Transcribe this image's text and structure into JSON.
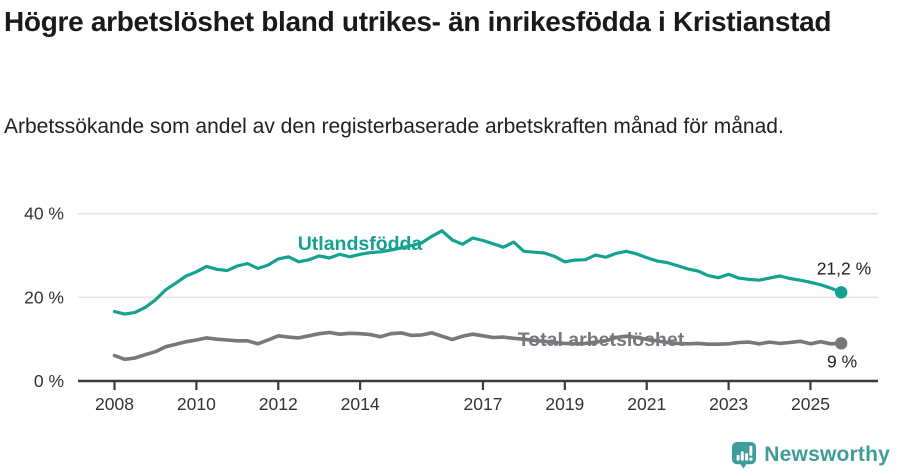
{
  "header": {
    "title": "Högre arbetslöshet bland utrikes- än inrikesfödda i Kristianstad",
    "subtitle": "Arbetssökande som andel av den registerbaserade arbetskraften månad för månad."
  },
  "footer": {
    "brand": "Newsworthy",
    "brand_icon": "bar-chart-speech-bubble-icon",
    "brand_color": "#3f9c98"
  },
  "colors": {
    "series_utlandsfodda": "#14a190",
    "series_total": "#77777c",
    "gridline": "#e3e3e3",
    "axis": "#3c3c3c",
    "tick_label": "#333333",
    "value_label": "#222222"
  },
  "chart_data": {
    "type": "line",
    "title": "Högre arbetslöshet bland utrikes- än inrikesfödda i Kristianstad",
    "subtitle": "Arbetssökande som andel av den registerbaserade arbetskraften månad för månad.",
    "x_unit": "year (monthly series, values estimated quarterly)",
    "y_unit": "percent of registered labour force",
    "ylim": [
      0,
      42
    ],
    "xlim": [
      2008,
      2025.83
    ],
    "grid": "horizontal",
    "legend_position": "inline-labels",
    "yticks": [
      {
        "value": 0,
        "label": "0 %"
      },
      {
        "value": 20,
        "label": "20 %"
      },
      {
        "value": 40,
        "label": "40 %"
      }
    ],
    "xticks": [
      {
        "value": 2008,
        "label": "2008"
      },
      {
        "value": 2010,
        "label": "2010"
      },
      {
        "value": 2012,
        "label": "2012"
      },
      {
        "value": 2014,
        "label": "2014"
      },
      {
        "value": 2017,
        "label": "2017"
      },
      {
        "value": 2019,
        "label": "2019"
      },
      {
        "value": 2021,
        "label": "2021"
      },
      {
        "value": 2023,
        "label": "2023"
      },
      {
        "value": 2025,
        "label": "2025"
      }
    ],
    "series": [
      {
        "name": "Utlandsfödda",
        "color": "#14a190",
        "end_label": "21,2 %",
        "end_value": 21.2,
        "points": [
          [
            2008.0,
            16.6
          ],
          [
            2008.25,
            16.0
          ],
          [
            2008.5,
            16.4
          ],
          [
            2008.75,
            17.6
          ],
          [
            2009.0,
            19.4
          ],
          [
            2009.25,
            21.8
          ],
          [
            2009.5,
            23.4
          ],
          [
            2009.75,
            25.1
          ],
          [
            2010.0,
            26.1
          ],
          [
            2010.25,
            27.4
          ],
          [
            2010.5,
            26.7
          ],
          [
            2010.75,
            26.4
          ],
          [
            2011.0,
            27.5
          ],
          [
            2011.25,
            28.1
          ],
          [
            2011.5,
            26.9
          ],
          [
            2011.75,
            27.7
          ],
          [
            2012.0,
            29.2
          ],
          [
            2012.25,
            29.7
          ],
          [
            2012.5,
            28.5
          ],
          [
            2012.75,
            29.0
          ],
          [
            2013.0,
            29.9
          ],
          [
            2013.25,
            29.4
          ],
          [
            2013.5,
            30.3
          ],
          [
            2013.75,
            29.7
          ],
          [
            2014.0,
            30.3
          ],
          [
            2014.25,
            30.7
          ],
          [
            2014.5,
            30.9
          ],
          [
            2014.75,
            31.3
          ],
          [
            2015.0,
            31.8
          ],
          [
            2015.25,
            32.4
          ],
          [
            2015.5,
            33.0
          ],
          [
            2015.75,
            34.6
          ],
          [
            2016.0,
            35.9
          ],
          [
            2016.25,
            33.7
          ],
          [
            2016.5,
            32.7
          ],
          [
            2016.75,
            34.2
          ],
          [
            2017.0,
            33.6
          ],
          [
            2017.25,
            32.8
          ],
          [
            2017.5,
            32.0
          ],
          [
            2017.75,
            33.2
          ],
          [
            2018.0,
            31.0
          ],
          [
            2018.25,
            30.8
          ],
          [
            2018.5,
            30.6
          ],
          [
            2018.75,
            29.8
          ],
          [
            2019.0,
            28.5
          ],
          [
            2019.25,
            28.9
          ],
          [
            2019.5,
            29.0
          ],
          [
            2019.75,
            30.1
          ],
          [
            2020.0,
            29.6
          ],
          [
            2020.25,
            30.5
          ],
          [
            2020.5,
            31.0
          ],
          [
            2020.75,
            30.4
          ],
          [
            2021.0,
            29.5
          ],
          [
            2021.25,
            28.7
          ],
          [
            2021.5,
            28.3
          ],
          [
            2021.75,
            27.6
          ],
          [
            2022.0,
            26.8
          ],
          [
            2022.25,
            26.3
          ],
          [
            2022.5,
            25.2
          ],
          [
            2022.75,
            24.7
          ],
          [
            2023.0,
            25.5
          ],
          [
            2023.25,
            24.6
          ],
          [
            2023.5,
            24.3
          ],
          [
            2023.75,
            24.1
          ],
          [
            2024.0,
            24.6
          ],
          [
            2024.25,
            25.1
          ],
          [
            2024.5,
            24.5
          ],
          [
            2024.75,
            24.1
          ],
          [
            2025.0,
            23.6
          ],
          [
            2025.25,
            23.0
          ],
          [
            2025.5,
            22.2
          ],
          [
            2025.75,
            21.2
          ]
        ]
      },
      {
        "name": "Total arbetslöshet",
        "color": "#77777c",
        "end_label": "9 %",
        "end_value": 9,
        "points": [
          [
            2008.0,
            6.1
          ],
          [
            2008.25,
            5.2
          ],
          [
            2008.5,
            5.5
          ],
          [
            2008.75,
            6.3
          ],
          [
            2009.0,
            7.0
          ],
          [
            2009.25,
            8.2
          ],
          [
            2009.5,
            8.8
          ],
          [
            2009.75,
            9.4
          ],
          [
            2010.0,
            9.8
          ],
          [
            2010.25,
            10.3
          ],
          [
            2010.5,
            10.0
          ],
          [
            2010.75,
            9.8
          ],
          [
            2011.0,
            9.6
          ],
          [
            2011.25,
            9.6
          ],
          [
            2011.5,
            8.9
          ],
          [
            2011.75,
            9.8
          ],
          [
            2012.0,
            10.8
          ],
          [
            2012.25,
            10.5
          ],
          [
            2012.5,
            10.3
          ],
          [
            2012.75,
            10.8
          ],
          [
            2013.0,
            11.3
          ],
          [
            2013.25,
            11.6
          ],
          [
            2013.5,
            11.2
          ],
          [
            2013.75,
            11.4
          ],
          [
            2014.0,
            11.3
          ],
          [
            2014.25,
            11.1
          ],
          [
            2014.5,
            10.6
          ],
          [
            2014.75,
            11.3
          ],
          [
            2015.0,
            11.5
          ],
          [
            2015.25,
            10.9
          ],
          [
            2015.5,
            11.0
          ],
          [
            2015.75,
            11.5
          ],
          [
            2016.0,
            10.7
          ],
          [
            2016.25,
            9.9
          ],
          [
            2016.5,
            10.7
          ],
          [
            2016.75,
            11.2
          ],
          [
            2017.0,
            10.8
          ],
          [
            2017.25,
            10.4
          ],
          [
            2017.5,
            10.5
          ],
          [
            2017.75,
            10.2
          ],
          [
            2018.0,
            10.0
          ],
          [
            2018.25,
            9.7
          ],
          [
            2018.5,
            9.5
          ],
          [
            2018.75,
            9.2
          ],
          [
            2019.0,
            9.0
          ],
          [
            2019.25,
            8.9
          ],
          [
            2019.5,
            9.0
          ],
          [
            2019.75,
            9.3
          ],
          [
            2020.0,
            9.6
          ],
          [
            2020.25,
            10.4
          ],
          [
            2020.5,
            10.7
          ],
          [
            2020.75,
            10.4
          ],
          [
            2021.0,
            10.0
          ],
          [
            2021.25,
            9.6
          ],
          [
            2021.5,
            9.2
          ],
          [
            2021.75,
            9.0
          ],
          [
            2022.0,
            8.9
          ],
          [
            2022.25,
            9.0
          ],
          [
            2022.5,
            8.8
          ],
          [
            2022.75,
            8.8
          ],
          [
            2023.0,
            8.9
          ],
          [
            2023.25,
            9.2
          ],
          [
            2023.5,
            9.3
          ],
          [
            2023.75,
            8.9
          ],
          [
            2024.0,
            9.3
          ],
          [
            2024.25,
            9.0
          ],
          [
            2024.5,
            9.2
          ],
          [
            2024.75,
            9.5
          ],
          [
            2025.0,
            8.9
          ],
          [
            2025.25,
            9.4
          ],
          [
            2025.5,
            8.9
          ],
          [
            2025.75,
            9.0
          ]
        ]
      }
    ]
  }
}
